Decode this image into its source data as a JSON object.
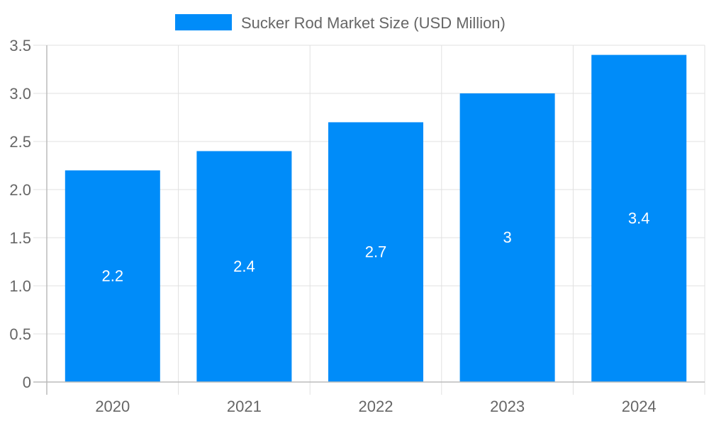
{
  "chart_data": {
    "type": "bar",
    "categories": [
      "2020",
      "2021",
      "2022",
      "2023",
      "2024"
    ],
    "series": [
      {
        "name": "Sucker Rod Market Size (USD Million)",
        "values": [
          2.2,
          2.4,
          2.7,
          3,
          3.4
        ]
      }
    ],
    "data_labels": [
      "2.2",
      "2.4",
      "2.7",
      "3",
      "3.4"
    ],
    "ylim": [
      0,
      3.5
    ],
    "yticks": [
      "0",
      "0.5",
      "1.0",
      "1.5",
      "2.0",
      "2.5",
      "3.0",
      "3.5"
    ],
    "grid": true,
    "legend_position": "top",
    "colors": {
      "bar": "#008cf9",
      "grid": "#e0e0e0",
      "axis": "#bbbbbb",
      "text": "#666666",
      "label": "#ffffff"
    }
  }
}
